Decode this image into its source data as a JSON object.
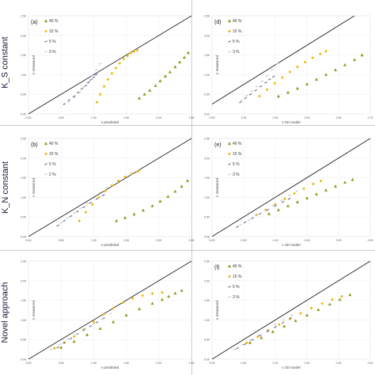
{
  "row_labels": [
    "K_S constant",
    "K_N constant",
    "Novel approach"
  ],
  "legend_labels": [
    "40 %",
    "15 %",
    "5 %",
    "3 %"
  ],
  "legend_labels_b": [
    "40 %",
    "15 %",
    "5 %",
    "2 %"
  ],
  "colors": {
    "c40": "#8a9a1a",
    "c15": "#f2b705",
    "c5": "#555a8c",
    "c3": "#c0c0c0",
    "identity": "#222222"
  },
  "chart_data": [
    {
      "id": "a",
      "panel_label": "(a)",
      "type": "scatter",
      "xlabel": "v predicted",
      "ylabel": "v measured",
      "xlim": [
        0.0,
        2.5
      ],
      "ylim": [
        0.0,
        2.5
      ],
      "xticks": [
        "0.00",
        "0.50",
        "1.00",
        "1.50",
        "2.00",
        "2.50"
      ],
      "yticks": [
        "0.00",
        "0.50",
        "1.00",
        "1.50",
        "2.00",
        "2.50"
      ],
      "legend": [
        "40 %",
        "15 %",
        "5 %",
        "3 %"
      ],
      "identity_line": true,
      "grid": true,
      "series": [
        {
          "name": "40 %",
          "x": [
            1.7,
            1.78,
            1.86,
            1.95,
            2.02,
            2.1,
            2.17,
            2.25,
            2.32,
            2.39,
            2.45
          ],
          "y": [
            0.4,
            0.5,
            0.6,
            0.72,
            0.84,
            0.96,
            1.07,
            1.2,
            1.32,
            1.44,
            1.56
          ]
        },
        {
          "name": "15 %",
          "x": [
            1.05,
            1.1,
            1.16,
            1.22,
            1.28,
            1.34,
            1.4,
            1.46,
            1.52,
            1.57,
            1.62,
            1.67
          ],
          "y": [
            0.3,
            0.5,
            0.7,
            0.88,
            1.03,
            1.17,
            1.29,
            1.4,
            1.48,
            1.55,
            1.59,
            1.62
          ]
        },
        {
          "name": "5 %",
          "x": [
            0.55,
            0.62,
            0.7,
            0.76,
            0.82,
            0.88,
            0.92,
            0.96,
            1.0,
            1.04
          ],
          "y": [
            0.25,
            0.35,
            0.45,
            0.55,
            0.64,
            0.72,
            0.8,
            0.87,
            0.93,
            1.0
          ]
        },
        {
          "name": "3 %",
          "x": [
            0.62,
            0.7,
            0.78,
            0.85,
            0.92,
            0.98,
            1.04,
            1.1
          ],
          "y": [
            0.3,
            0.42,
            0.55,
            0.68,
            0.82,
            0.97,
            1.12,
            1.28
          ]
        }
      ]
    },
    {
      "id": "d",
      "panel_label": "(d)",
      "type": "scatter",
      "xlabel": "v 2D model",
      "ylabel": "v measured",
      "xlim": [
        0.25,
        2.75
      ],
      "ylim": [
        0.0,
        2.5
      ],
      "xticks": [
        "0.50",
        "1.00",
        "1.50",
        "2.00",
        "2.50",
        "2.75"
      ],
      "yticks": [
        "0.00",
        "0.50",
        "1.00",
        "1.50",
        "2.00",
        "2.50"
      ],
      "legend": [
        "40 %",
        "15 %",
        "5 %",
        "3 %"
      ],
      "identity_line": true,
      "grid": true,
      "series": [
        {
          "name": "40 %",
          "x": [
            1.3,
            1.45,
            1.6,
            1.75,
            1.9,
            2.05,
            2.2,
            2.35,
            2.5,
            2.62
          ],
          "y": [
            0.45,
            0.55,
            0.65,
            0.76,
            0.88,
            1.0,
            1.12,
            1.25,
            1.38,
            1.5
          ]
        },
        {
          "name": "15 %",
          "x": [
            1.0,
            1.12,
            1.24,
            1.36,
            1.48,
            1.6,
            1.72,
            1.84,
            1.96,
            2.05
          ],
          "y": [
            0.45,
            0.62,
            0.78,
            0.93,
            1.07,
            1.2,
            1.32,
            1.43,
            1.53,
            1.6
          ]
        },
        {
          "name": "5 %",
          "x": [
            0.7,
            0.78,
            0.86,
            0.94,
            1.02,
            1.1,
            1.16,
            1.22
          ],
          "y": [
            0.3,
            0.4,
            0.5,
            0.6,
            0.7,
            0.8,
            0.88,
            0.95
          ]
        },
        {
          "name": "3 %",
          "x": [
            0.72,
            0.8,
            0.88,
            0.96,
            1.04,
            1.12,
            1.2,
            1.28
          ],
          "y": [
            0.35,
            0.46,
            0.58,
            0.7,
            0.83,
            0.97,
            1.12,
            1.28
          ]
        }
      ]
    },
    {
      "id": "b",
      "panel_label": "(b)",
      "type": "scatter",
      "xlabel": "v predicted",
      "ylabel": "v measured",
      "xlim": [
        0.0,
        2.5
      ],
      "ylim": [
        0.0,
        2.5
      ],
      "xticks": [
        "0.00",
        "0.50",
        "1.00",
        "1.50",
        "2.00",
        "2.50"
      ],
      "yticks": [
        "0.00",
        "0.50",
        "1.00",
        "1.50",
        "2.00",
        "2.50"
      ],
      "legend": [
        "40 %",
        "15 %",
        "5 %",
        "2 %"
      ],
      "identity_line": true,
      "grid": true,
      "series": [
        {
          "name": "40 %",
          "x": [
            1.35,
            1.48,
            1.62,
            1.76,
            1.9,
            2.02,
            2.14,
            2.25,
            2.35,
            2.44
          ],
          "y": [
            0.4,
            0.48,
            0.57,
            0.67,
            0.78,
            0.9,
            1.02,
            1.15,
            1.28,
            1.42
          ]
        },
        {
          "name": "15 %",
          "x": [
            0.78,
            0.88,
            0.98,
            1.08,
            1.18,
            1.28,
            1.38,
            1.48,
            1.58,
            1.68
          ],
          "y": [
            0.4,
            0.62,
            0.82,
            1.0,
            1.16,
            1.3,
            1.42,
            1.52,
            1.6,
            1.66
          ]
        },
        {
          "name": "5 %",
          "x": [
            0.45,
            0.55,
            0.65,
            0.75,
            0.85,
            0.95,
            1.05,
            1.15
          ],
          "y": [
            0.28,
            0.4,
            0.52,
            0.64,
            0.75,
            0.86,
            0.96,
            1.05
          ]
        },
        {
          "name": "2 %",
          "x": [
            0.5,
            0.6,
            0.7,
            0.8,
            0.9,
            1.0,
            1.1,
            1.2
          ],
          "y": [
            0.35,
            0.47,
            0.6,
            0.72,
            0.85,
            0.98,
            1.12,
            1.25
          ]
        }
      ]
    },
    {
      "id": "e",
      "panel_label": "(e)",
      "type": "scatter",
      "xlabel": "v 2D model",
      "ylabel": "v measured",
      "xlim": [
        0.0,
        2.5
      ],
      "ylim": [
        0.0,
        2.5
      ],
      "xticks": [
        "0.00",
        "0.50",
        "1.00",
        "1.50",
        "2.00",
        "2.50"
      ],
      "yticks": [
        "0.00",
        "0.50",
        "1.00",
        "1.50",
        "2.00",
        "2.50"
      ],
      "legend": [
        "40 %",
        "15 %",
        "5 %",
        "3 %"
      ],
      "identity_line": true,
      "grid": true,
      "series": [
        {
          "name": "40 %",
          "x": [
            0.9,
            1.05,
            1.2,
            1.35,
            1.5,
            1.65,
            1.8,
            1.95,
            2.1,
            2.22
          ],
          "y": [
            0.58,
            0.68,
            0.78,
            0.88,
            0.98,
            1.08,
            1.18,
            1.28,
            1.38,
            1.45
          ]
        },
        {
          "name": "15 %",
          "x": [
            0.7,
            0.85,
            1.0,
            1.15,
            1.3,
            1.45,
            1.6,
            1.72
          ],
          "y": [
            0.55,
            0.68,
            0.82,
            0.96,
            1.1,
            1.22,
            1.34,
            1.42
          ]
        },
        {
          "name": "5 %",
          "x": [
            0.4,
            0.52,
            0.64,
            0.76,
            0.88,
            1.0,
            1.12,
            1.22
          ],
          "y": [
            0.25,
            0.36,
            0.47,
            0.58,
            0.68,
            0.78,
            0.88,
            0.96
          ]
        },
        {
          "name": "3 %",
          "x": [
            0.45,
            0.58,
            0.71,
            0.84,
            0.97,
            1.1,
            1.22,
            1.34
          ],
          "y": [
            0.3,
            0.42,
            0.55,
            0.67,
            0.8,
            0.92,
            1.05,
            1.16
          ]
        }
      ]
    },
    {
      "id": "c",
      "panel_label": "",
      "type": "scatter",
      "xlabel": "v predicted",
      "ylabel": "v measured",
      "xlim": [
        0.0,
        2.5
      ],
      "ylim": [
        0.0,
        2.5
      ],
      "xticks": [
        "0.00",
        "0.50",
        "1.00",
        "1.50",
        "2.00",
        "2.50"
      ],
      "yticks": [
        "0.00",
        "0.50",
        "1.00",
        "1.50",
        "2.00",
        "2.50"
      ],
      "legend": [],
      "identity_line": true,
      "grid": true,
      "series": [
        {
          "name": "",
          "x": [
            0.5,
            0.7,
            0.9,
            1.1,
            1.3,
            1.5,
            1.7,
            1.9,
            2.05,
            2.15,
            2.25,
            2.35
          ],
          "y": [
            0.3,
            0.45,
            0.62,
            0.78,
            0.95,
            1.12,
            1.28,
            1.42,
            1.52,
            1.6,
            1.68,
            1.75
          ]
        },
        {
          "name": "",
          "x": [
            0.4,
            0.55,
            0.7,
            0.85,
            1.0,
            1.15,
            1.3,
            1.45,
            1.6,
            1.75,
            1.9,
            2.05
          ],
          "y": [
            0.28,
            0.42,
            0.58,
            0.76,
            0.95,
            1.14,
            1.3,
            1.44,
            1.55,
            1.62,
            1.67,
            1.7
          ]
        },
        {
          "name": "",
          "x": [
            0.45,
            0.55,
            0.65,
            0.75,
            0.85,
            0.95,
            1.05,
            1.15
          ],
          "y": [
            0.3,
            0.42,
            0.53,
            0.64,
            0.74,
            0.84,
            0.94,
            1.04
          ]
        },
        {
          "name": "",
          "x": [
            0.35,
            0.48,
            0.61,
            0.74,
            0.87,
            1.0,
            1.13,
            1.26
          ],
          "y": [
            0.25,
            0.38,
            0.51,
            0.64,
            0.77,
            0.9,
            1.03,
            1.16
          ]
        }
      ]
    },
    {
      "id": "f",
      "panel_label": "(f)",
      "type": "scatter",
      "xlabel": "v 2D model",
      "ylabel": "v measured",
      "xlim": [
        0.0,
        2.5
      ],
      "ylim": [
        0.0,
        2.5
      ],
      "xticks": [
        "0.00",
        "0.50",
        "1.00",
        "1.50",
        "2.00",
        "2.50"
      ],
      "yticks": [
        "0.00",
        "0.50",
        "1.00",
        "1.50",
        "2.00",
        "2.50"
      ],
      "legend": [
        "40 %",
        "15 %",
        "5 %",
        "3 %"
      ],
      "identity_line": true,
      "grid": true,
      "series": [
        {
          "name": "40 %",
          "x": [
            0.6,
            0.78,
            0.96,
            1.14,
            1.32,
            1.5,
            1.68,
            1.86,
            2.02,
            2.18
          ],
          "y": [
            0.42,
            0.55,
            0.7,
            0.84,
            0.98,
            1.12,
            1.26,
            1.4,
            1.52,
            1.64
          ]
        },
        {
          "name": "15 %",
          "x": [
            0.55,
            0.72,
            0.89,
            1.06,
            1.23,
            1.4,
            1.57,
            1.74,
            1.9,
            2.05
          ],
          "y": [
            0.42,
            0.57,
            0.73,
            0.88,
            1.03,
            1.17,
            1.3,
            1.42,
            1.52,
            1.6
          ]
        },
        {
          "name": "5 %",
          "x": [
            0.4,
            0.52,
            0.64,
            0.76,
            0.88,
            1.0,
            1.12,
            1.24
          ],
          "y": [
            0.28,
            0.38,
            0.49,
            0.6,
            0.71,
            0.82,
            0.93,
            1.04
          ]
        },
        {
          "name": "3 %",
          "x": [
            0.35,
            0.48,
            0.61,
            0.74,
            0.87,
            1.0,
            1.13,
            1.26
          ],
          "y": [
            0.25,
            0.37,
            0.5,
            0.62,
            0.75,
            0.88,
            1.0,
            1.12
          ]
        }
      ]
    }
  ]
}
